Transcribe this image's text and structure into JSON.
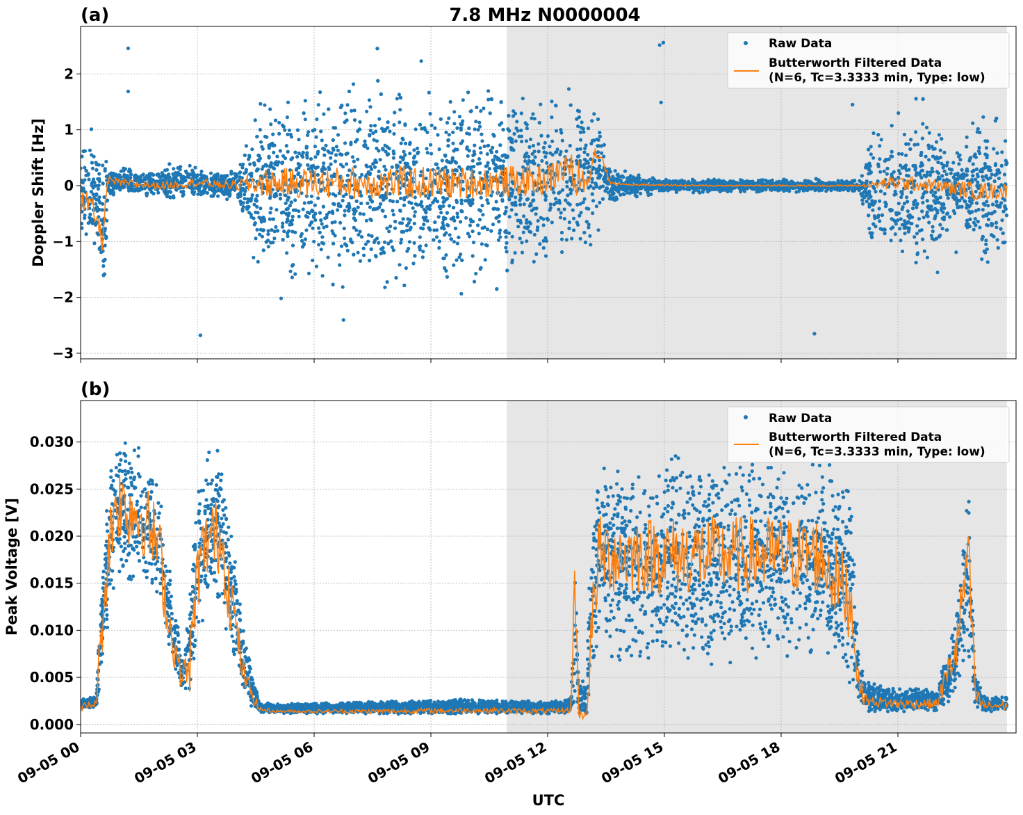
{
  "title": "7.8 MHz N0000004",
  "xlabel": "UTC",
  "x_ticks": [
    "09-05 00",
    "09-05 03",
    "09-05 06",
    "09-05 09",
    "09-05 12",
    "09-05 15",
    "09-05 18",
    "09-05 21"
  ],
  "colors": {
    "raw": "#1f77b4",
    "filtered": "#ff7f0e",
    "night_shade": "#e6e6e6",
    "grid": "#b0b0b0"
  },
  "legend": {
    "raw_label": "Raw Data",
    "filtered_label_line1": "Butterworth Filtered Data",
    "filtered_label_line2": "(N=6, Tc=3.3333 min, Type: low)",
    "position": "upper right"
  },
  "chart_data": [
    {
      "type": "scatter",
      "panel_label": "(a)",
      "ylabel": "Doppler Shift [Hz]",
      "x_range_hours": [
        0,
        23.8
      ],
      "ylim": [
        -3.1,
        2.85
      ],
      "yticks": [
        -3,
        -2,
        -1,
        0,
        1,
        2
      ],
      "ytick_labels": [
        "−3",
        "−2",
        "−1",
        "0",
        "1",
        "2"
      ],
      "shaded_interval_hours": [
        10.95,
        23.8
      ],
      "grid": true,
      "series": [
        {
          "name": "Raw Data",
          "style": "points",
          "envelope_hours": [
            0,
            0.4,
            0.5,
            0.6,
            0.7,
            1.0,
            2.0,
            2.6,
            3.5,
            4.0,
            4.3,
            4.6,
            5.0,
            6.0,
            7.0,
            8.0,
            9.0,
            10.0,
            10.9,
            11.5,
            12.3,
            12.7,
            12.8,
            13.0,
            13.3,
            13.5,
            14.0,
            15.0,
            16.0,
            17.0,
            18.0,
            19.0,
            20.0,
            20.3,
            21.0,
            21.5,
            22.0,
            22.5,
            23.0,
            23.5,
            23.8
          ],
          "envelope_center": [
            0.1,
            -0.3,
            -0.6,
            -1.0,
            0.05,
            0.05,
            0.05,
            0.1,
            0.0,
            0.0,
            0.0,
            0.0,
            0.0,
            0.0,
            0.0,
            0.0,
            0.0,
            0.0,
            0.0,
            0.0,
            0.0,
            0.1,
            0.3,
            0.0,
            0.3,
            0.0,
            0.02,
            0.0,
            0.0,
            0.0,
            0.0,
            0.0,
            0.0,
            -0.1,
            -0.1,
            0.0,
            -0.05,
            0.0,
            -0.1,
            -0.2,
            -0.1
          ],
          "envelope_spread": [
            0.5,
            0.6,
            0.7,
            0.8,
            0.15,
            0.12,
            0.12,
            0.2,
            0.12,
            0.15,
            0.4,
            0.8,
            0.85,
            0.9,
            0.9,
            0.9,
            0.9,
            0.9,
            0.85,
            0.8,
            0.8,
            0.8,
            0.9,
            0.7,
            0.6,
            0.2,
            0.12,
            0.06,
            0.06,
            0.06,
            0.06,
            0.06,
            0.06,
            0.6,
            0.7,
            0.8,
            0.6,
            0.3,
            0.7,
            0.7,
            0.6
          ],
          "outlier_range": [
            -2.8,
            2.6
          ]
        },
        {
          "name": "Butterworth Filtered Data (N=6, Tc=3.3333 min, Type: low)",
          "style": "line",
          "envelope_hours": [
            0,
            0.3,
            0.5,
            0.55,
            0.6,
            0.7,
            1.0,
            2.0,
            3.0,
            4.0,
            4.5,
            6.0,
            8.0,
            10.0,
            12.0,
            12.6,
            12.7,
            12.8,
            13.0,
            13.2,
            13.4,
            13.6,
            14.0,
            16.0,
            18.0,
            20.0,
            21.0,
            22.0,
            23.0,
            23.8
          ],
          "center": [
            -0.3,
            -0.4,
            -0.8,
            -1.15,
            -0.6,
            0.1,
            0.05,
            0.0,
            0.05,
            0.0,
            0.05,
            0.05,
            0.05,
            0.05,
            0.1,
            0.4,
            -0.2,
            0.2,
            0.0,
            0.6,
            0.5,
            0.05,
            0.02,
            0.0,
            0.0,
            0.0,
            0.05,
            0.0,
            -0.1,
            -0.1
          ],
          "noise_amplitude": [
            0.2,
            0.15,
            0.1,
            0.05,
            0.1,
            0.06,
            0.05,
            0.05,
            0.05,
            0.06,
            0.18,
            0.2,
            0.22,
            0.2,
            0.2,
            0.2,
            0.2,
            0.2,
            0.1,
            0.1,
            0.05,
            0.02,
            0.01,
            0.01,
            0.01,
            0.01,
            0.1,
            0.08,
            0.12,
            0.1
          ]
        }
      ]
    },
    {
      "type": "scatter",
      "panel_label": "(b)",
      "ylabel": "Peak Voltage [V]",
      "x_range_hours": [
        0,
        23.8
      ],
      "ylim": [
        -0.0009,
        0.0344
      ],
      "yticks": [
        0,
        0.005,
        0.01,
        0.015,
        0.02,
        0.025,
        0.03
      ],
      "ytick_labels": [
        "0.000",
        "0.005",
        "0.010",
        "0.015",
        "0.020",
        "0.025",
        "0.030"
      ],
      "shaded_interval_hours": [
        10.95,
        23.8
      ],
      "grid": true,
      "series": [
        {
          "name": "Raw Data",
          "style": "points",
          "envelope_hours": [
            0,
            0.4,
            0.5,
            0.7,
            0.9,
            1.2,
            1.6,
            2.0,
            2.3,
            2.6,
            2.8,
            3.0,
            3.3,
            3.6,
            3.8,
            4.2,
            4.6,
            5.0,
            8.0,
            10.0,
            12.0,
            12.6,
            12.7,
            12.8,
            13.0,
            13.1,
            13.3,
            14.0,
            15.0,
            16.0,
            17.0,
            18.0,
            19.0,
            19.8,
            20.0,
            20.2,
            21.0,
            22.0,
            22.5,
            22.8,
            23.0,
            23.2,
            23.8
          ],
          "envelope_low": [
            0.0015,
            0.0018,
            0.004,
            0.01,
            0.014,
            0.014,
            0.014,
            0.012,
            0.006,
            0.003,
            0.0025,
            0.008,
            0.012,
            0.012,
            0.008,
            0.0025,
            0.0012,
            0.0011,
            0.0011,
            0.0011,
            0.0011,
            0.0011,
            0.002,
            0.0008,
            0.0008,
            0.001,
            0.008,
            0.006,
            0.006,
            0.006,
            0.006,
            0.006,
            0.006,
            0.003,
            0.0015,
            0.0012,
            0.0012,
            0.0012,
            0.003,
            0.006,
            0.0015,
            0.0013,
            0.0013
          ],
          "envelope_high": [
            0.0028,
            0.003,
            0.012,
            0.026,
            0.032,
            0.031,
            0.029,
            0.026,
            0.017,
            0.008,
            0.014,
            0.026,
            0.03,
            0.03,
            0.024,
            0.01,
            0.0025,
            0.0022,
            0.0025,
            0.0028,
            0.0025,
            0.003,
            0.021,
            0.004,
            0.006,
            0.02,
            0.028,
            0.028,
            0.029,
            0.029,
            0.029,
            0.029,
            0.029,
            0.026,
            0.008,
            0.0045,
            0.004,
            0.004,
            0.012,
            0.026,
            0.006,
            0.003,
            0.003
          ]
        },
        {
          "name": "Butterworth Filtered Data (N=6, Tc=3.3333 min, Type: low)",
          "style": "line",
          "envelope_hours": [
            0,
            0.4,
            0.5,
            0.7,
            0.9,
            1.2,
            1.6,
            2.0,
            2.3,
            2.6,
            2.8,
            3.0,
            3.3,
            3.6,
            3.8,
            4.2,
            4.6,
            5.0,
            8.0,
            10.0,
            12.0,
            12.6,
            12.7,
            12.8,
            13.0,
            13.1,
            13.3,
            14.0,
            15.0,
            16.0,
            17.0,
            18.0,
            19.0,
            19.8,
            20.0,
            20.2,
            21.0,
            22.0,
            22.5,
            22.8,
            23.0,
            23.2,
            23.8
          ],
          "center": [
            0.0018,
            0.0022,
            0.008,
            0.018,
            0.024,
            0.023,
            0.022,
            0.019,
            0.01,
            0.005,
            0.006,
            0.016,
            0.02,
            0.02,
            0.015,
            0.005,
            0.0016,
            0.0014,
            0.0014,
            0.0015,
            0.0014,
            0.0015,
            0.016,
            0.001,
            0.001,
            0.008,
            0.018,
            0.018,
            0.018,
            0.018,
            0.018,
            0.018,
            0.018,
            0.013,
            0.004,
            0.0025,
            0.0022,
            0.0022,
            0.008,
            0.018,
            0.003,
            0.002,
            0.002
          ],
          "noise_amplitude": [
            0.0003,
            0.0003,
            0.002,
            0.003,
            0.003,
            0.003,
            0.003,
            0.003,
            0.002,
            0.001,
            0.002,
            0.003,
            0.003,
            0.003,
            0.003,
            0.001,
            0.0002,
            0.0001,
            0.0002,
            0.0002,
            0.0002,
            0.0002,
            0.003,
            0.0003,
            0.0003,
            0.003,
            0.003,
            0.003,
            0.003,
            0.003,
            0.003,
            0.003,
            0.003,
            0.003,
            0.001,
            0.0004,
            0.0004,
            0.0004,
            0.002,
            0.003,
            0.0008,
            0.0004,
            0.0004
          ]
        }
      ]
    }
  ]
}
